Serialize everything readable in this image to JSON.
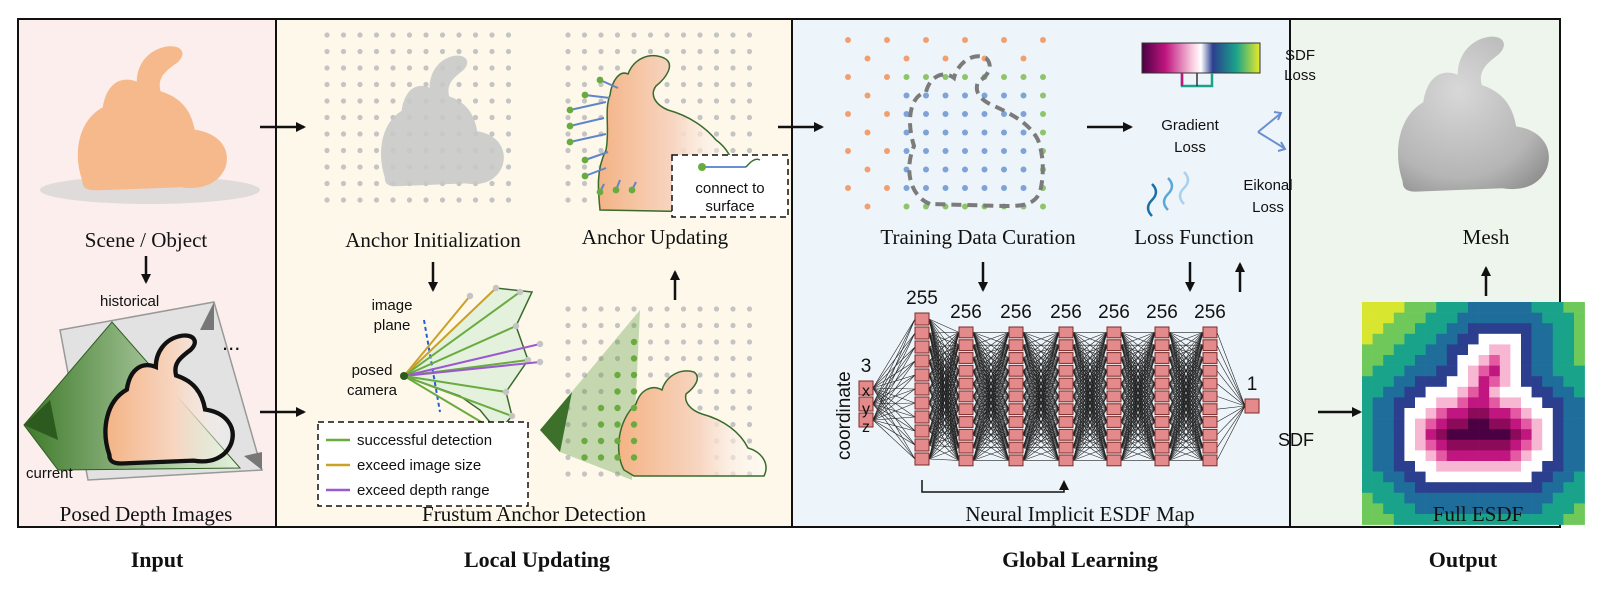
{
  "sections": {
    "input": "Input",
    "local": "Local Updating",
    "global": "Global Learning",
    "output": "Output"
  },
  "input_panel": {
    "scene_caption": "Scene / Object",
    "depth_caption": "Posed Depth Images",
    "historical_label": "historical",
    "current_label": "current",
    "ellipsis": "..."
  },
  "local_panel": {
    "anchor_init": "Anchor Initialization",
    "anchor_update": "Anchor Updating",
    "frustum_detection": "Frustum Anchor Detection",
    "connect_line1": "connect to",
    "connect_line2": "surface",
    "image_plane_line1": "image",
    "image_plane_line2": "plane",
    "posed_camera_line1": "posed",
    "posed_camera_line2": "camera",
    "legend": [
      {
        "label": "successful detection",
        "color": "#6aab3f"
      },
      {
        "label": "exceed image size",
        "color": "#c9a227"
      },
      {
        "label": "exceed depth range",
        "color": "#9b59d0"
      }
    ]
  },
  "global_panel": {
    "training_caption": "Training Data Curation",
    "loss_caption": "Loss Function",
    "network_caption": "Neural Implicit ESDF Map",
    "sdf_loss_line1": "SDF",
    "sdf_loss_line2": "Loss",
    "gradient_loss_line1": "Gradient",
    "gradient_loss_line2": "Loss",
    "eikonal_loss_line1": "Eikonal",
    "eikonal_loss_line2": "Loss",
    "input_axis_label": "coordinate",
    "input_vars": [
      "x",
      "y",
      "z"
    ],
    "layer_sizes": [
      "3",
      "255",
      "256",
      "256",
      "256",
      "256",
      "256",
      "256",
      "1"
    ],
    "output_label": "SDF"
  },
  "output_panel": {
    "mesh_caption": "Mesh",
    "esdf_caption": "Full ESDF"
  },
  "colors": {
    "input_bg": "#fbeeed",
    "local_bg": "#fdf8ea",
    "global_bg": "#eef5fa",
    "output_bg": "#eef5ec",
    "bunny_orange": "#f5b98c",
    "node_pink": "#e58a8a",
    "anchor_green": "#6aab3f",
    "grid_gray": "#c4c4c4",
    "blue_point": "#7ea3d8",
    "orange_point": "#f0a070"
  },
  "icons": [
    "bunny-icon",
    "camera-frustum-icon",
    "arrow-icon",
    "network-icon",
    "esdf-heatmap-icon"
  ]
}
